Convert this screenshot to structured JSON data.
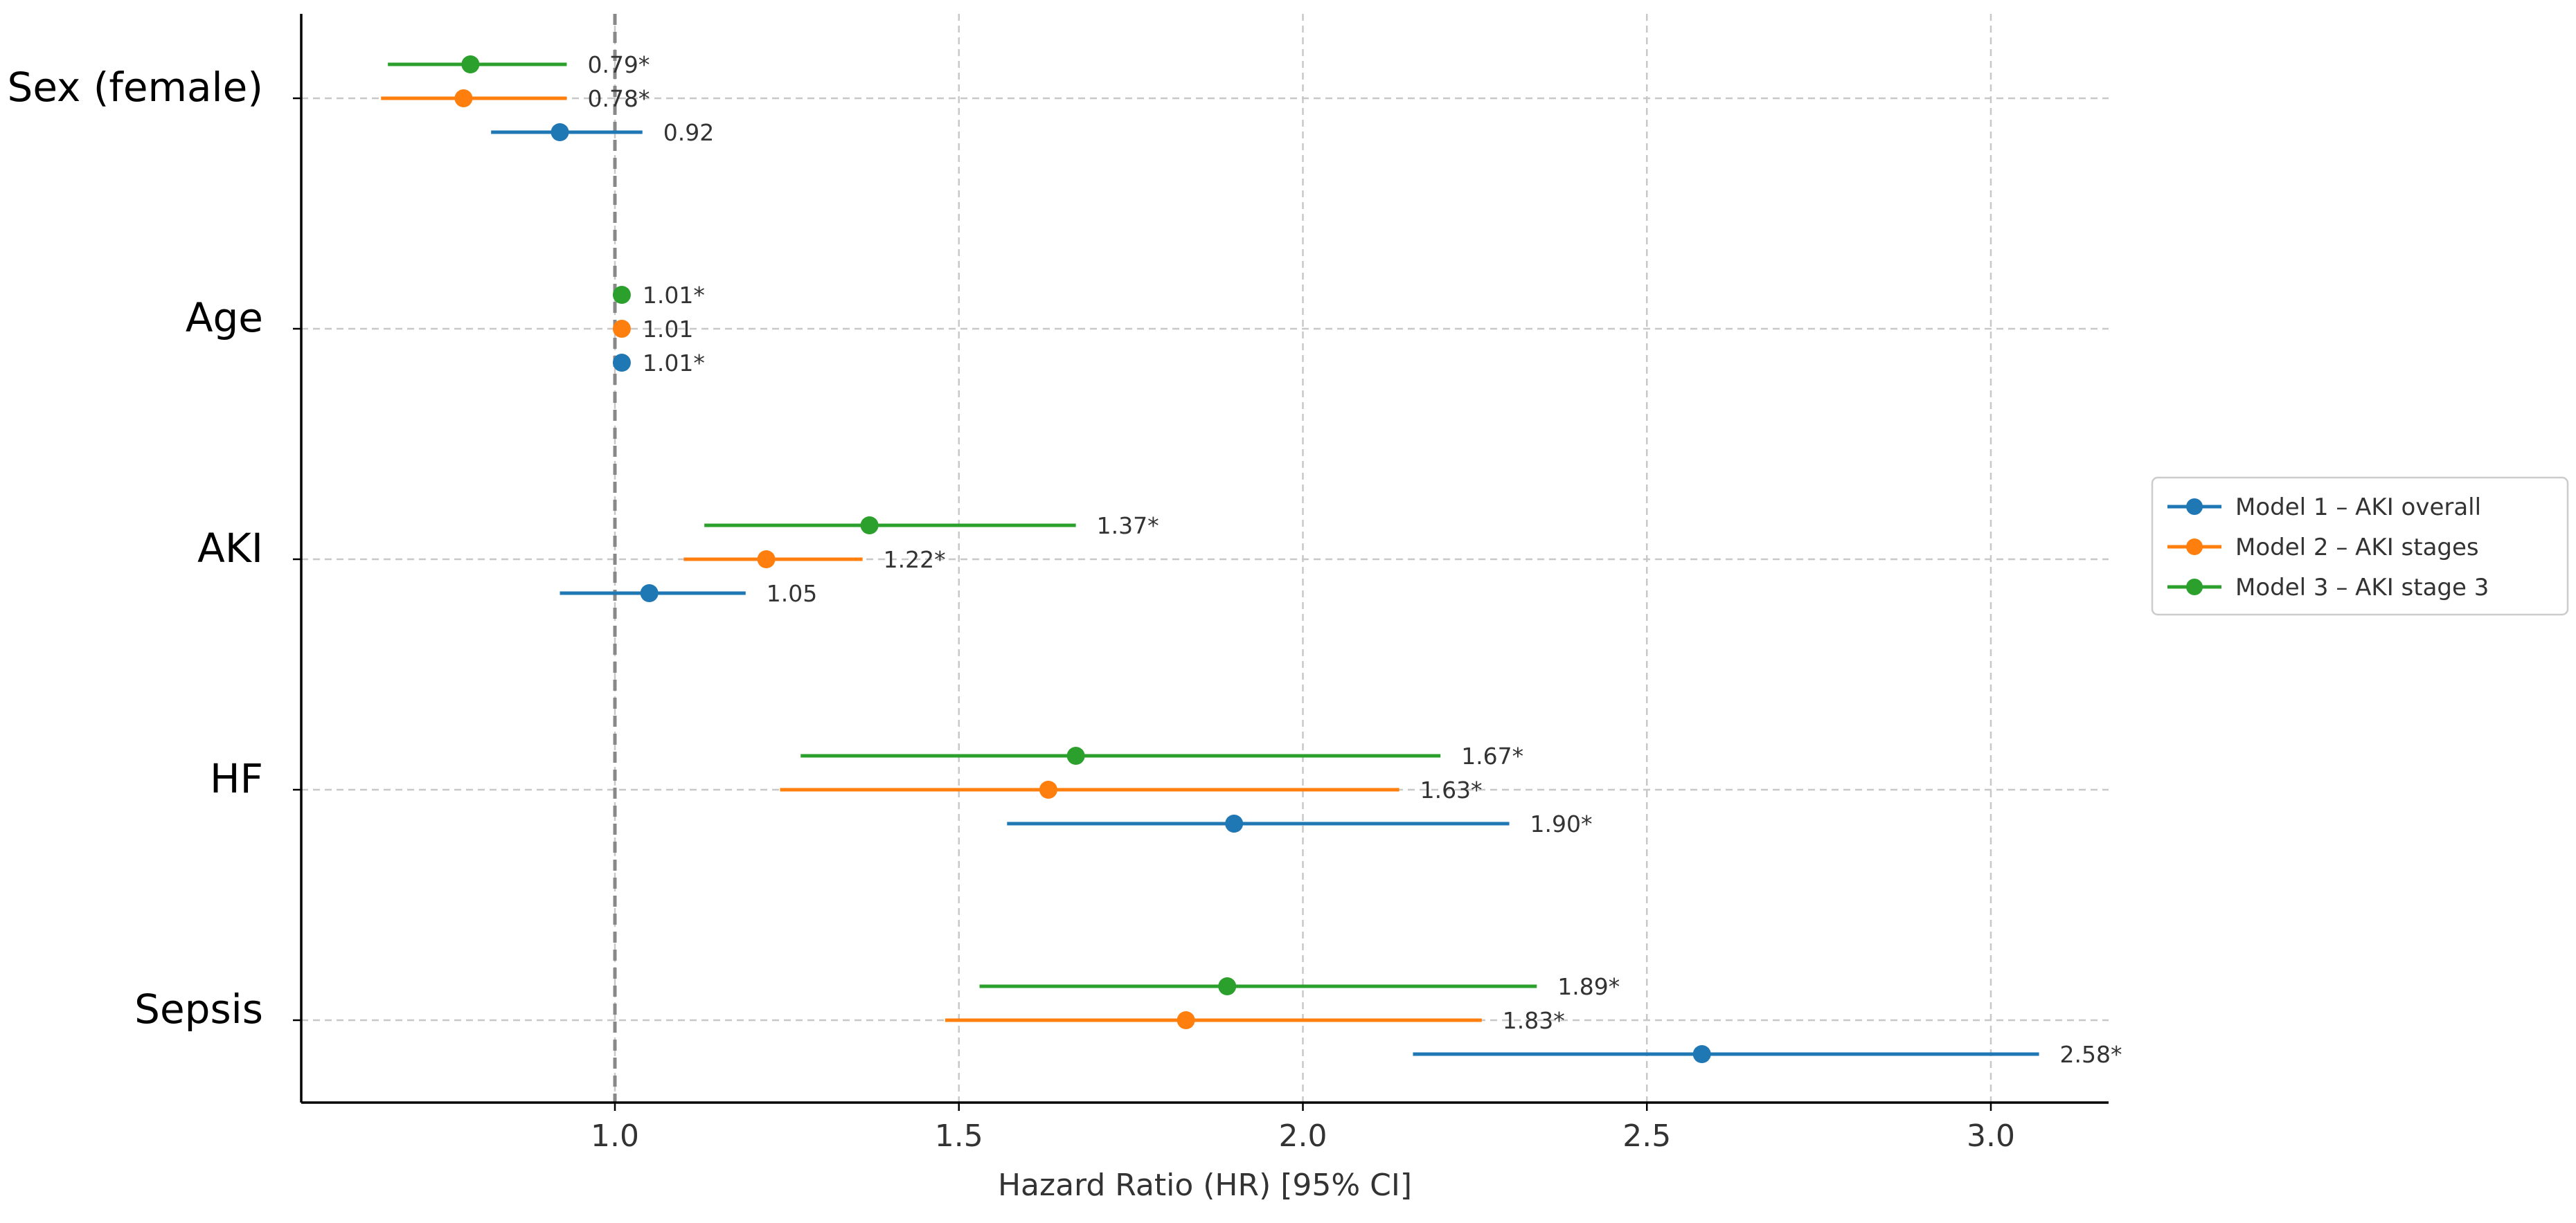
{
  "chart_data": {
    "type": "forest",
    "title": "",
    "xlabel": "Hazard Ratio (HR) [95% CI]",
    "ylabel": "",
    "xlim": [
      0.545,
      3.18
    ],
    "xticks": [
      1.0,
      1.5,
      2.0,
      2.5,
      3.0
    ],
    "xtick_labels": [
      "1.0",
      "1.5",
      "2.0",
      "2.5",
      "3.0"
    ],
    "reference_line": 1.0,
    "grid": true,
    "legend_position": "center-right",
    "categories": [
      "Sex (female)",
      "Age",
      "AKI",
      "HF",
      "Sepsis"
    ],
    "series": [
      {
        "name": "Model 1 – AKI overall",
        "color": "#1f77b4",
        "offset": "below",
        "points": [
          {
            "category": "Sex (female)",
            "hr": 0.92,
            "lo": 0.82,
            "hi": 1.04,
            "label": "0.92"
          },
          {
            "category": "Age",
            "hr": 1.01,
            "lo": 1.01,
            "hi": 1.01,
            "label": "1.01*"
          },
          {
            "category": "AKI",
            "hr": 1.05,
            "lo": 0.92,
            "hi": 1.19,
            "label": "1.05"
          },
          {
            "category": "HF",
            "hr": 1.9,
            "lo": 1.57,
            "hi": 2.3,
            "label": "1.90*"
          },
          {
            "category": "Sepsis",
            "hr": 2.58,
            "lo": 2.16,
            "hi": 3.07,
            "label": "2.58*"
          }
        ]
      },
      {
        "name": "Model 2 – AKI stages",
        "color": "#ff7f0e",
        "offset": "center",
        "points": [
          {
            "category": "Sex (female)",
            "hr": 0.78,
            "lo": 0.66,
            "hi": 0.93,
            "label": "0.78*"
          },
          {
            "category": "Age",
            "hr": 1.01,
            "lo": 1.01,
            "hi": 1.01,
            "label": "1.01"
          },
          {
            "category": "AKI",
            "hr": 1.22,
            "lo": 1.1,
            "hi": 1.36,
            "label": "1.22*"
          },
          {
            "category": "HF",
            "hr": 1.63,
            "lo": 1.24,
            "hi": 2.14,
            "label": "1.63*"
          },
          {
            "category": "Sepsis",
            "hr": 1.83,
            "lo": 1.48,
            "hi": 2.26,
            "label": "1.83*"
          }
        ]
      },
      {
        "name": "Model 3 – AKI stage 3",
        "color": "#2ca02c",
        "offset": "above",
        "points": [
          {
            "category": "Sex (female)",
            "hr": 0.79,
            "lo": 0.67,
            "hi": 0.93,
            "label": "0.79*"
          },
          {
            "category": "Age",
            "hr": 1.01,
            "lo": 1.01,
            "hi": 1.01,
            "label": "1.01*"
          },
          {
            "category": "AKI",
            "hr": 1.37,
            "lo": 1.13,
            "hi": 1.67,
            "label": "1.37*"
          },
          {
            "category": "HF",
            "hr": 1.67,
            "lo": 1.27,
            "hi": 2.2,
            "label": "1.67*"
          },
          {
            "category": "Sepsis",
            "hr": 1.89,
            "lo": 1.53,
            "hi": 2.34,
            "label": "1.89*"
          }
        ]
      }
    ]
  }
}
